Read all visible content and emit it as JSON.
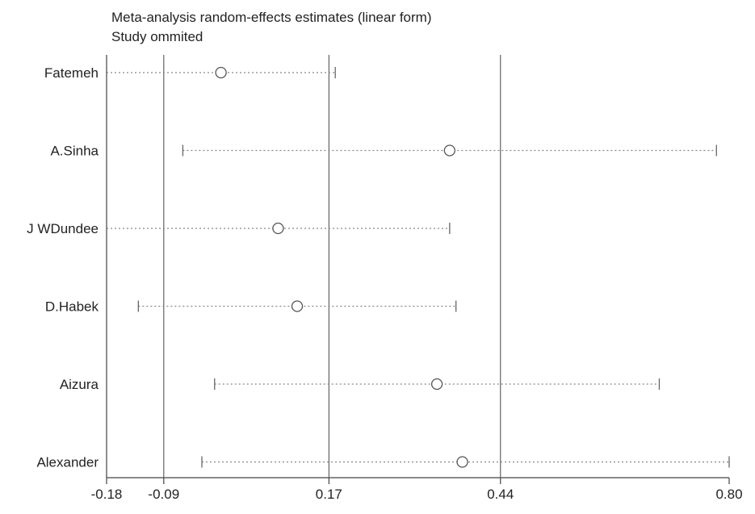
{
  "chart_data": {
    "type": "forest",
    "title": "Meta-analysis random-effects estimates (linear form)",
    "subtitle": "Study ommited",
    "x_ticks": [
      -0.18,
      -0.09,
      0.17,
      0.44,
      0.8
    ],
    "x_tick_labels": [
      "-0.18",
      "-0.09",
      "0.17",
      "0.44",
      "0.80"
    ],
    "reference_lines": [
      -0.09,
      0.17,
      0.44
    ],
    "xlim": [
      -0.18,
      0.8
    ],
    "studies": [
      {
        "label": "Fatemeh",
        "estimate": 0.0,
        "lower": -0.18,
        "upper": 0.18
      },
      {
        "label": "A.Sinha",
        "estimate": 0.36,
        "lower": -0.06,
        "upper": 0.78
      },
      {
        "label": "J WDundee",
        "estimate": 0.09,
        "lower": -0.18,
        "upper": 0.36
      },
      {
        "label": "D.Habek",
        "estimate": 0.12,
        "lower": -0.13,
        "upper": 0.37
      },
      {
        "label": "Aizura",
        "estimate": 0.34,
        "lower": -0.01,
        "upper": 0.69
      },
      {
        "label": "Alexander",
        "estimate": 0.38,
        "lower": -0.03,
        "upper": 0.8
      }
    ]
  }
}
